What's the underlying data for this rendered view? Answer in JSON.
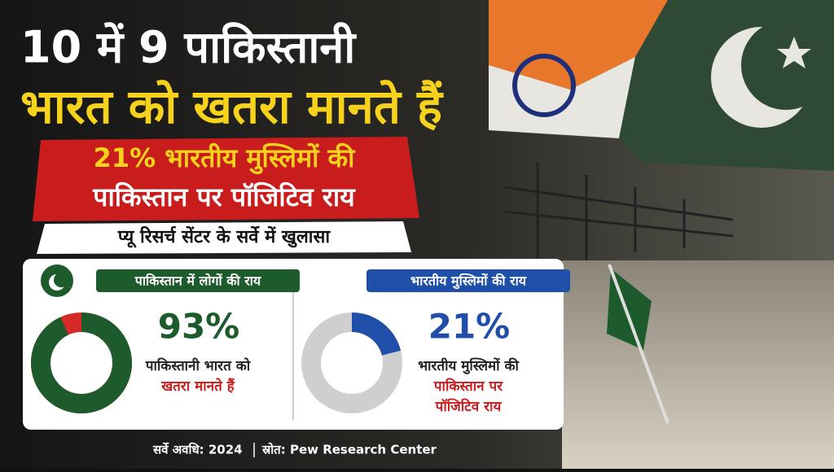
{
  "headline": {
    "line1": "10 में 9 पाकिस्तानी",
    "line2": "भारत को खतरा मानते हैं"
  },
  "subheadline": {
    "line1": "21% भारतीय मुस्लिमों की",
    "line2": "पाकिस्तान पर पॉजिटिव राय"
  },
  "tagline": "प्यू रिसर्च सेंटर के सर्वे में खुलासा",
  "chart_data": [
    {
      "type": "pie",
      "title": "पाकिस्तान में लोगों की राय",
      "values": [
        93
      ],
      "value_labels": [
        "93%"
      ],
      "color": "#1d5b2c",
      "track_color": "#d62a2a",
      "title_color": "#1d5b2c",
      "caption": [
        "पाकिस्तानी भारत को",
        "खतरा मानते हैं"
      ]
    },
    {
      "type": "pie",
      "title": "भारतीय मुस्लिमों की राय",
      "values": [
        21
      ],
      "value_labels": [
        "21%"
      ],
      "color": "#1f4fa8",
      "track_color": "#cfcfcf",
      "title_color": "#1f4fa8",
      "caption": [
        "भारतीय मुस्लिमों की",
        "पाकिस्तान पर",
        "पॉजिटिव राय"
      ]
    }
  ],
  "footer": {
    "period": "सर्वे अवधि: 2024",
    "source": "स्रोत: Pew Research Center"
  }
}
